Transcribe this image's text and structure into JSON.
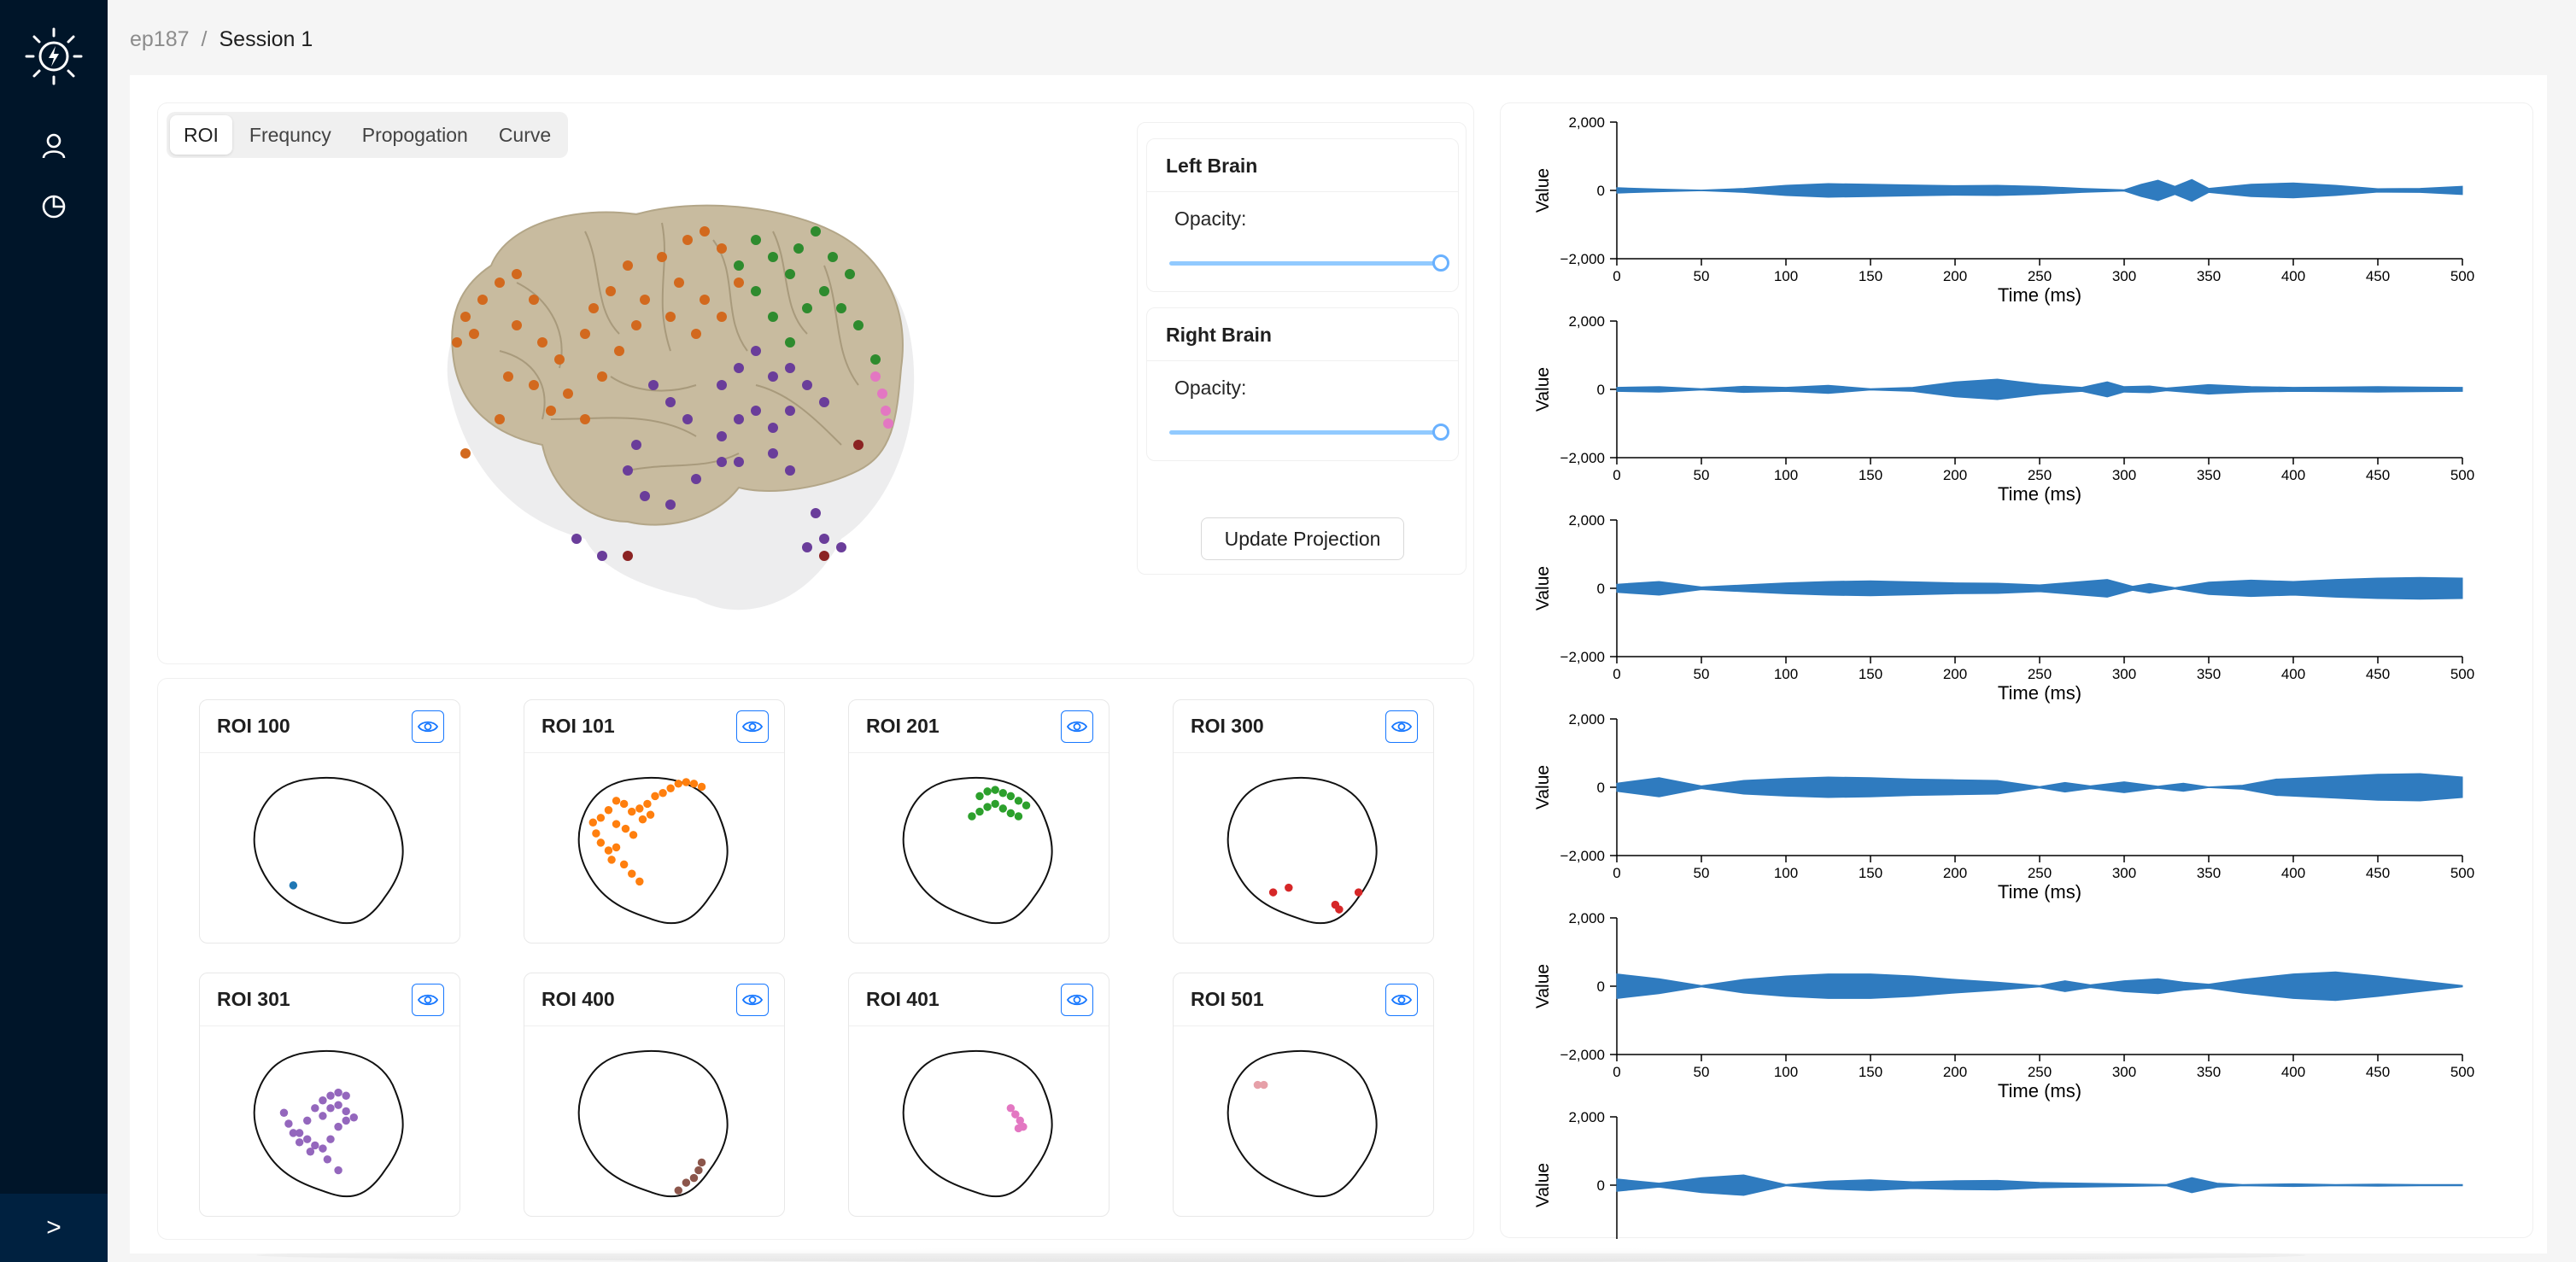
{
  "breadcrumb": {
    "parent": "ep187",
    "separator": "/",
    "current": "Session 1"
  },
  "sidebar": {
    "logo_icon": "brain-bolt-icon",
    "items": [
      {
        "icon": "user-icon"
      },
      {
        "icon": "pie-chart-icon"
      }
    ],
    "collapse_label": ">"
  },
  "tabs": [
    {
      "label": "ROI",
      "active": true
    },
    {
      "label": "Frequncy",
      "active": false
    },
    {
      "label": "Propogation",
      "active": false
    },
    {
      "label": "Curve",
      "active": false
    }
  ],
  "controls": {
    "left": {
      "title": "Left Brain",
      "opacity_label": "Opacity:",
      "opacity": 1.0
    },
    "right": {
      "title": "Right Brain",
      "opacity_label": "Opacity:",
      "opacity": 1.0
    },
    "update_button": "Update Projection"
  },
  "rois": [
    {
      "title": "ROI 100",
      "color": "#1f77b4"
    },
    {
      "title": "ROI 101",
      "color": "#ff7f0e"
    },
    {
      "title": "ROI 201",
      "color": "#2ca02c"
    },
    {
      "title": "ROI 300",
      "color": "#d62728"
    },
    {
      "title": "ROI 301",
      "color": "#9467bd"
    },
    {
      "title": "ROI 400",
      "color": "#8c564b"
    },
    {
      "title": "ROI 401",
      "color": "#e377c2"
    },
    {
      "title": "ROI 501",
      "color": "#e6a0a8"
    }
  ],
  "colors": {
    "sidebar_bg": "#001529",
    "wave_fill": "#2f7bbf",
    "brain_surface": "#c8bb9f",
    "accent": "#1677ff"
  },
  "chart_data": [
    {
      "type": "area",
      "xlabel": "Time (ms)",
      "ylabel": "Value",
      "ylim": [
        -2000,
        2000
      ],
      "xlim": [
        0,
        500
      ],
      "x_ticks": [
        "0",
        "50",
        "100",
        "150",
        "200",
        "250",
        "300",
        "350",
        "400",
        "450",
        "500"
      ],
      "y_ticks": [
        "2,000",
        "0",
        "−2,000"
      ],
      "x": [
        0,
        25,
        50,
        75,
        100,
        125,
        150,
        175,
        200,
        225,
        250,
        275,
        300,
        310,
        320,
        330,
        340,
        350,
        375,
        400,
        425,
        450,
        475,
        500
      ],
      "series": [
        {
          "values": [
            80,
            40,
            10,
            60,
            150,
            200,
            180,
            160,
            140,
            150,
            120,
            60,
            20,
            180,
            300,
            120,
            320,
            60,
            180,
            220,
            150,
            50,
            60,
            120
          ]
        }
      ]
    },
    {
      "type": "area",
      "xlabel": "Time (ms)",
      "ylabel": "Value",
      "ylim": [
        -2000,
        2000
      ],
      "xlim": [
        0,
        500
      ],
      "x_ticks": [
        "0",
        "50",
        "100",
        "150",
        "200",
        "250",
        "300",
        "350",
        "400",
        "450",
        "500"
      ],
      "y_ticks": [
        "2,000",
        "0",
        "−2,000"
      ],
      "x": [
        0,
        25,
        50,
        75,
        100,
        125,
        150,
        175,
        200,
        225,
        250,
        275,
        290,
        300,
        315,
        325,
        350,
        375,
        400,
        425,
        450,
        475,
        500
      ],
      "series": [
        {
          "values": [
            60,
            80,
            20,
            90,
            60,
            120,
            20,
            60,
            220,
            300,
            150,
            60,
            220,
            80,
            100,
            40,
            140,
            80,
            60,
            70,
            80,
            70,
            60
          ]
        }
      ]
    },
    {
      "type": "area",
      "xlabel": "Time (ms)",
      "ylabel": "Value",
      "ylim": [
        -2000,
        2000
      ],
      "xlim": [
        0,
        500
      ],
      "x_ticks": [
        "0",
        "50",
        "100",
        "150",
        "200",
        "250",
        "300",
        "350",
        "400",
        "450",
        "500"
      ],
      "y_ticks": [
        "2,000",
        "0",
        "−2,000"
      ],
      "x": [
        0,
        25,
        50,
        75,
        100,
        125,
        150,
        175,
        200,
        225,
        250,
        275,
        290,
        305,
        315,
        330,
        350,
        375,
        400,
        425,
        450,
        475,
        500
      ],
      "series": [
        {
          "values": [
            120,
            200,
            40,
            100,
            160,
            200,
            220,
            190,
            160,
            150,
            100,
            200,
            260,
            60,
            140,
            20,
            180,
            240,
            200,
            260,
            300,
            320,
            300
          ]
        }
      ]
    },
    {
      "type": "area",
      "xlabel": "Time (ms)",
      "ylabel": "Value",
      "ylim": [
        -2000,
        2000
      ],
      "xlim": [
        0,
        500
      ],
      "x_ticks": [
        "0",
        "50",
        "100",
        "150",
        "200",
        "250",
        "300",
        "350",
        "400",
        "450",
        "500"
      ],
      "y_ticks": [
        "2,000",
        "0",
        "−2,000"
      ],
      "x": [
        0,
        25,
        50,
        75,
        100,
        125,
        150,
        175,
        200,
        225,
        250,
        265,
        280,
        300,
        320,
        335,
        350,
        370,
        390,
        425,
        450,
        475,
        500
      ],
      "series": [
        {
          "values": [
            120,
            280,
            40,
            200,
            260,
            300,
            280,
            240,
            220,
            200,
            20,
            140,
            40,
            160,
            30,
            120,
            10,
            60,
            240,
            320,
            380,
            400,
            300
          ]
        }
      ]
    },
    {
      "type": "area",
      "xlabel": "Time (ms)",
      "ylabel": "Value",
      "ylim": [
        -2000,
        2000
      ],
      "xlim": [
        0,
        500
      ],
      "x_ticks": [
        "0",
        "50",
        "100",
        "150",
        "200",
        "250",
        "300",
        "350",
        "400",
        "450",
        "500"
      ],
      "y_ticks": [
        "2,000",
        "0",
        "−2,000"
      ],
      "x": [
        0,
        25,
        50,
        75,
        100,
        125,
        150,
        175,
        200,
        225,
        250,
        265,
        280,
        300,
        320,
        335,
        350,
        370,
        400,
        425,
        450,
        475,
        500
      ],
      "series": [
        {
          "values": [
            360,
            220,
            20,
            200,
            300,
            360,
            360,
            300,
            200,
            120,
            20,
            160,
            40,
            160,
            220,
            120,
            60,
            200,
            360,
            420,
            300,
            160,
            20
          ]
        }
      ]
    },
    {
      "type": "area",
      "xlabel": "",
      "ylabel": "Value",
      "ylim": [
        -2000,
        2000
      ],
      "xlim": [
        0,
        500
      ],
      "x_ticks": [],
      "y_ticks": [
        "2,000",
        "0"
      ],
      "x": [
        0,
        25,
        50,
        75,
        100,
        125,
        150,
        175,
        200,
        225,
        250,
        275,
        300,
        325,
        340,
        355,
        370,
        400,
        425,
        450,
        475,
        500
      ],
      "series": [
        {
          "values": [
            180,
            60,
            220,
            300,
            20,
            120,
            160,
            100,
            130,
            140,
            80,
            60,
            40,
            20,
            220,
            60,
            20,
            40,
            20,
            30,
            20,
            20
          ]
        }
      ]
    }
  ]
}
